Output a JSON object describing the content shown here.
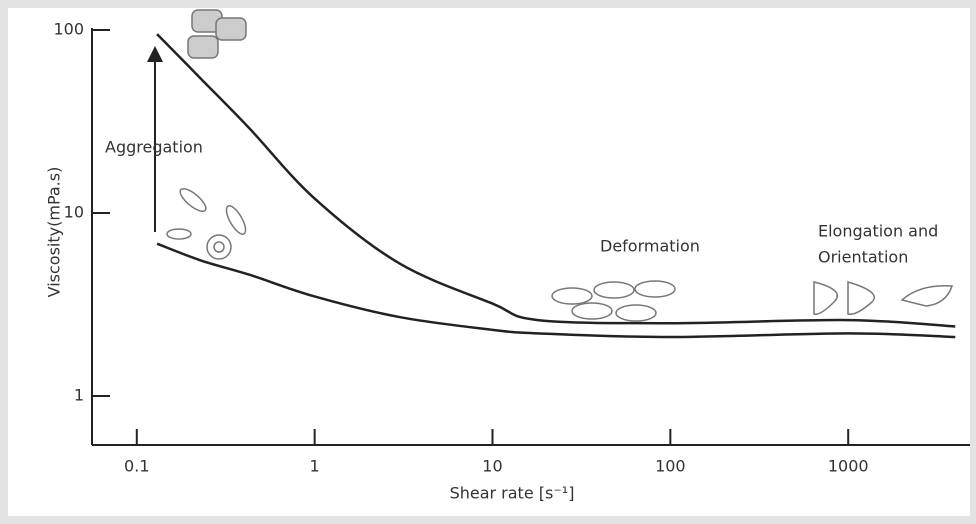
{
  "chart_data": {
    "type": "line",
    "x_label": "Shear rate [s⁻¹]",
    "y_label": "Viscosity(mPa.s)",
    "log_x": true,
    "log_y": true,
    "xlim": [
      0.056,
      4840
    ],
    "ylim": [
      0.54,
      100
    ],
    "xticks": [
      0.1,
      1,
      10,
      100,
      1000
    ],
    "yticks": [
      1,
      10,
      100
    ],
    "x": [
      0.13,
      0.23,
      0.43,
      1,
      3,
      10,
      18,
      100,
      1000,
      4000
    ],
    "series": [
      {
        "color": "#222222",
        "values": [
          95,
          54,
          29,
          12,
          5.3,
          3.2,
          2.6,
          2.5,
          2.6,
          2.4
        ]
      },
      {
        "color": "#222222",
        "values": [
          6.8,
          5.5,
          4.6,
          3.5,
          2.7,
          2.3,
          2.2,
          2.1,
          2.2,
          2.1
        ]
      }
    ],
    "annotations": [
      "Aggregation",
      "Deformation",
      "Elongation and",
      "Orientation"
    ]
  }
}
